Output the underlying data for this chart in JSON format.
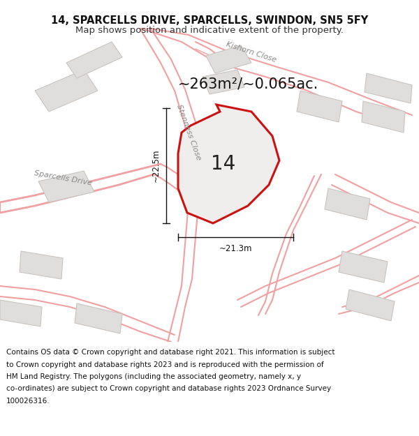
{
  "title_line1": "14, SPARCELLS DRIVE, SPARCELLS, SWINDON, SN5 5FY",
  "title_line2": "Map shows position and indicative extent of the property.",
  "footer_lines": [
    "Contains OS data © Crown copyright and database right 2021. This information is subject",
    "to Crown copyright and database rights 2023 and is reproduced with the permission of",
    "HM Land Registry. The polygons (including the associated geometry, namely x, y",
    "co-ordinates) are subject to Crown copyright and database rights 2023 Ordnance Survey",
    "100026316."
  ],
  "map_bg": "#f7f6f4",
  "property_fill": "#f0eeec",
  "property_edge": "#cc1111",
  "road_outline": "#f0a0a0",
  "building_fill": "#e0dedd",
  "building_edge": "#c8c4c0",
  "label_number": "14",
  "area_text": "~263m²/~0.065ac.",
  "dim_width": "~21.3m",
  "dim_height": "~22.5m",
  "road_label1": "Kishorn Close",
  "road_label2": "Sparcells Drive",
  "road_label3": "Stenness Close"
}
